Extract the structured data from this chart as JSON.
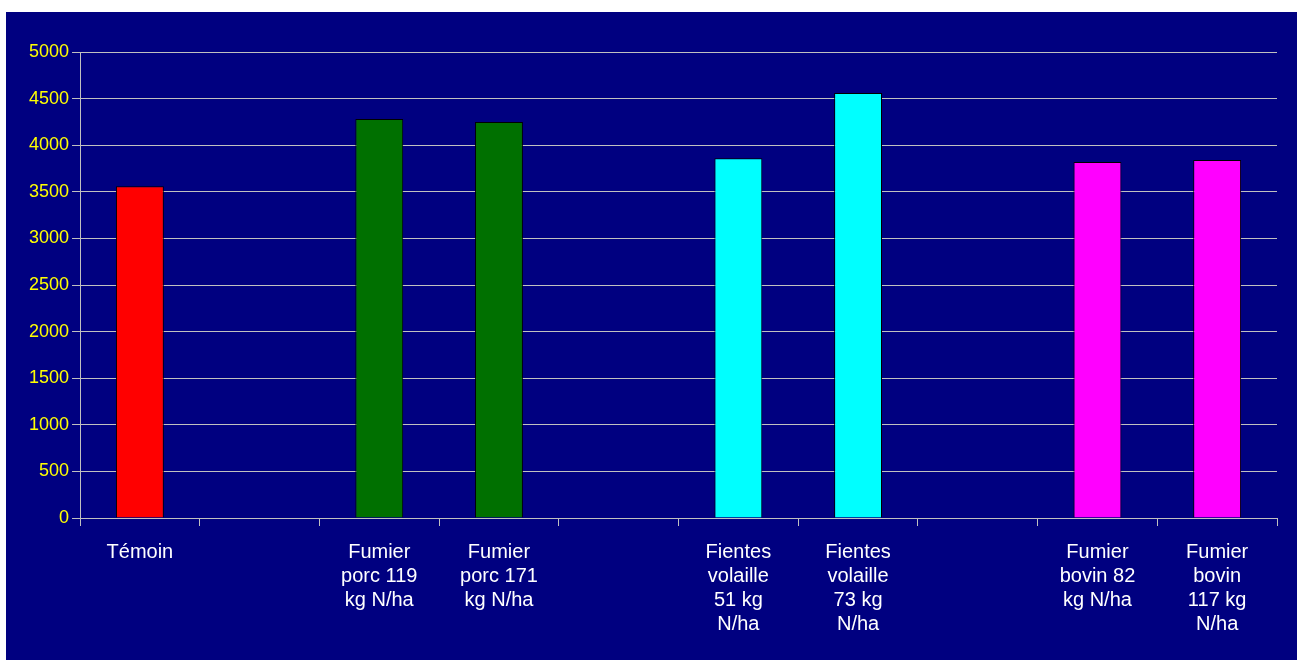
{
  "chart_data": {
    "type": "bar",
    "categories": [
      "Témoin",
      null,
      "Fumier porc 119 kg N/ha",
      "Fumier porc 171 kg N/ha",
      null,
      "Fientes volaille 51 kg N/ha",
      "Fientes volaille 73 kg N/ha",
      null,
      "Fumier bovin 82 kg N/ha",
      "Fumier bovin 117 kg N/ha"
    ],
    "values": [
      3560,
      null,
      4280,
      4250,
      null,
      3860,
      4560,
      null,
      3820,
      3840
    ],
    "colors": [
      "#ff0000",
      null,
      "#007000",
      "#007000",
      null,
      "#00ffff",
      "#00ffff",
      null,
      "#ff00ff",
      "#ff00ff"
    ],
    "ylim": [
      0,
      5000
    ],
    "yticks": [
      0,
      500,
      1000,
      1500,
      2000,
      2500,
      3000,
      3500,
      4000,
      4500,
      5000
    ],
    "grid": "y",
    "legend": false
  }
}
